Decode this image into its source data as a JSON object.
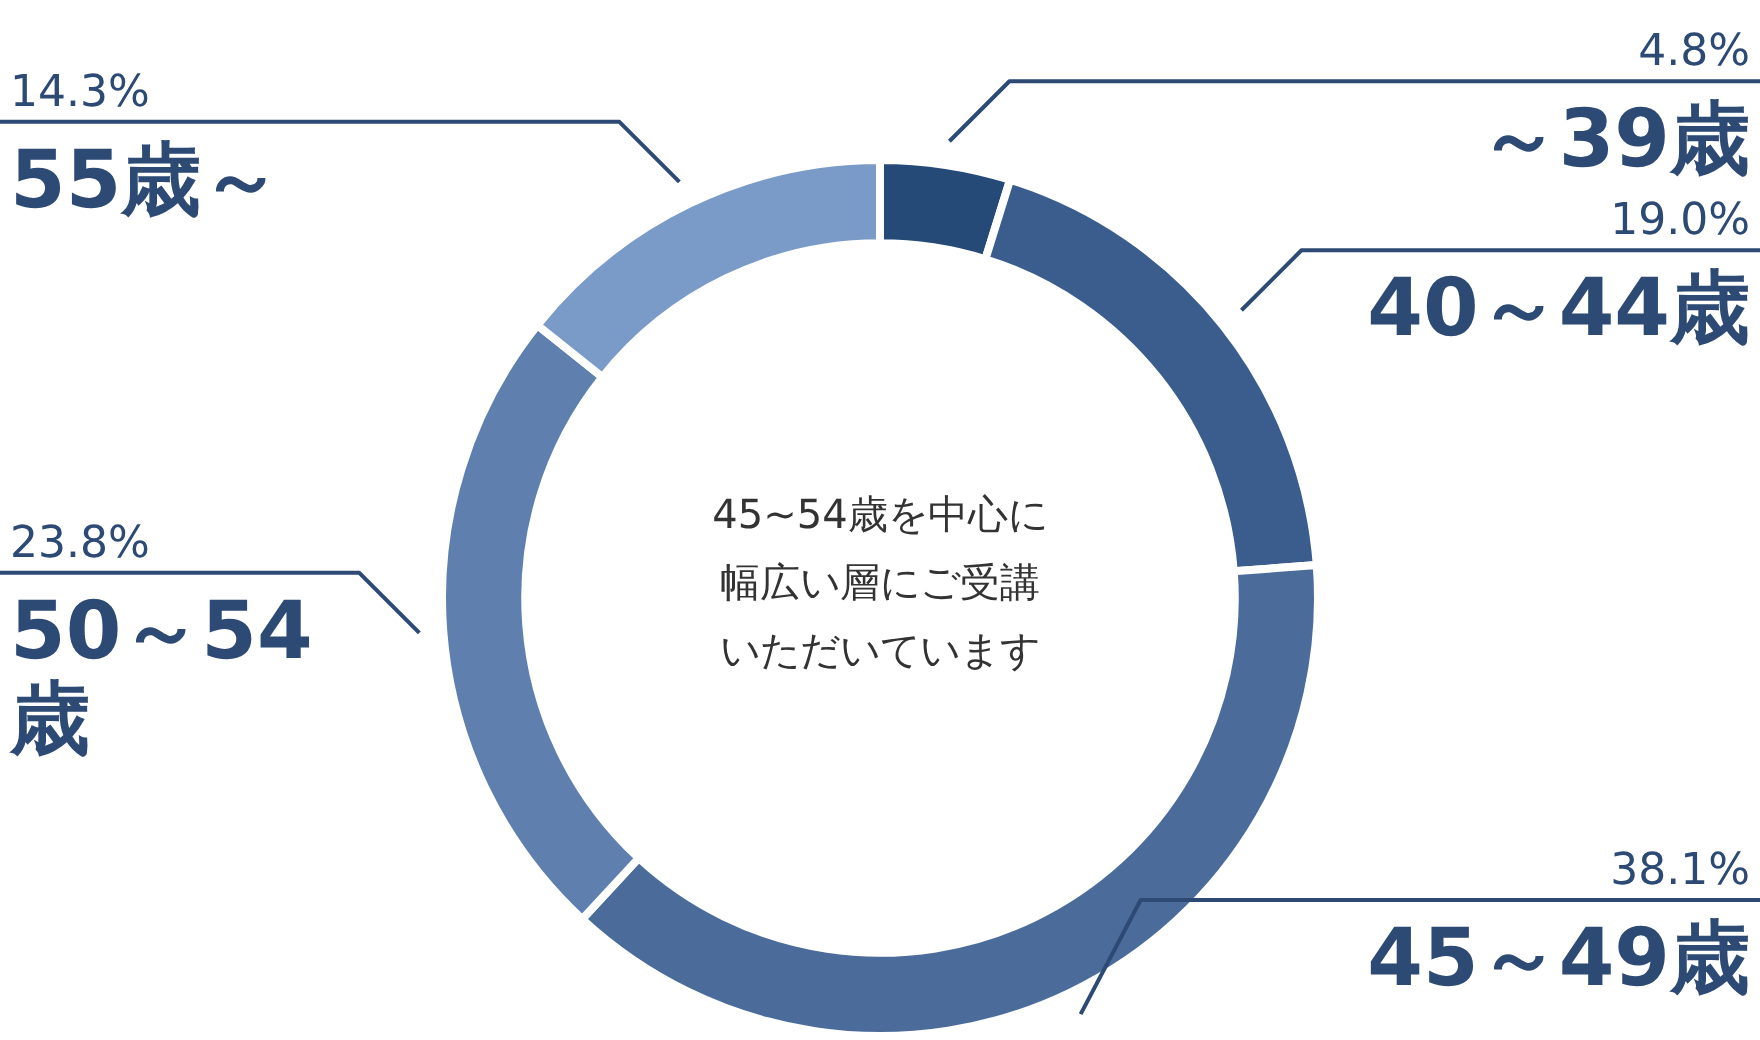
{
  "chart_data": {
    "type": "donut",
    "categories": [
      "～39歳",
      "40～44歳",
      "45～49歳",
      "50～54歳",
      "55歳～"
    ],
    "values": [
      4.8,
      19.0,
      38.1,
      23.8,
      14.3
    ],
    "value_labels": [
      "4.8%",
      "19.0%",
      "38.1%",
      "23.8%",
      "14.3%"
    ],
    "colors": [
      "#264a78",
      "#3a5d8e",
      "#4b6c9b",
      "#5f80ae",
      "#7a9bc8"
    ],
    "legend": false,
    "annotations": [
      "45~54歳を中心に",
      "幅広い層にご受講",
      "いただいています"
    ]
  }
}
